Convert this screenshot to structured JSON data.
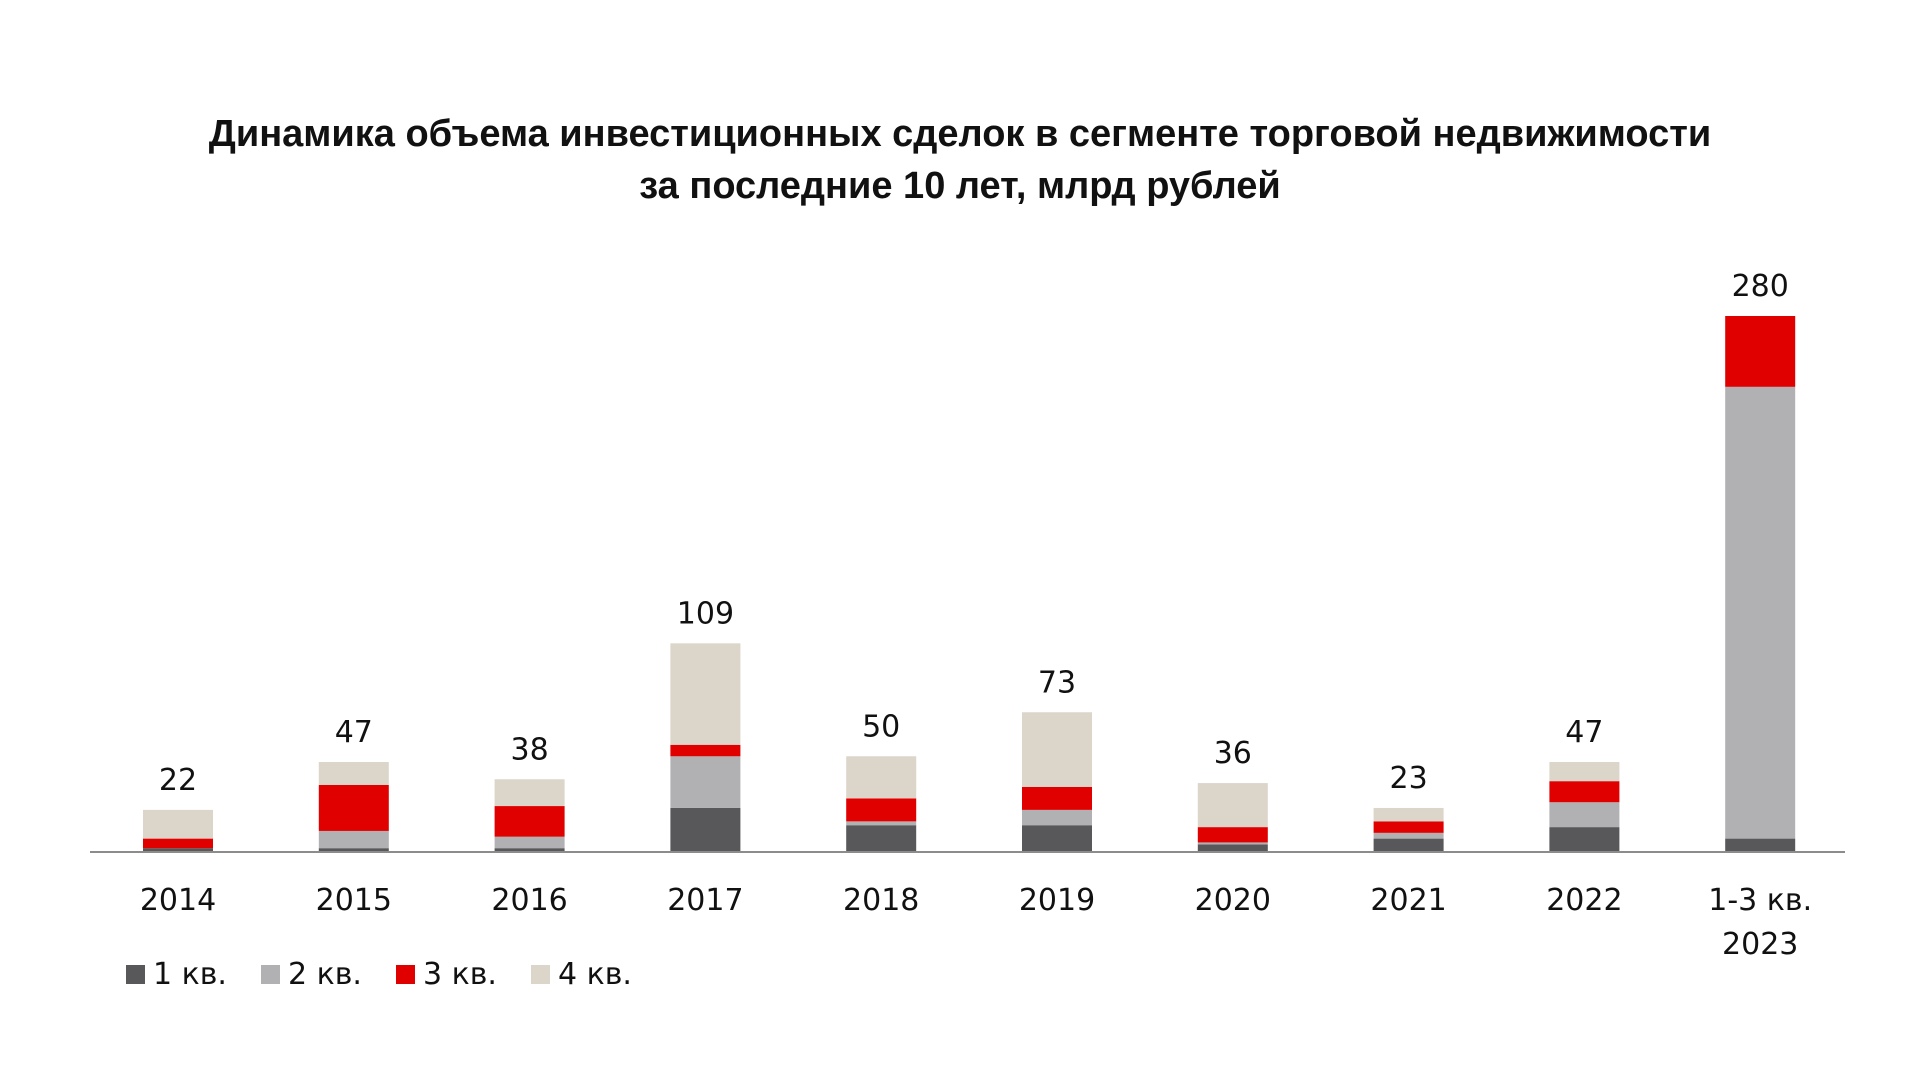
{
  "chart_data": {
    "type": "bar",
    "stacked": true,
    "title_lines": [
      "Динамика объема инвестиционных сделок в сегменте торговой недвижимости",
      "за последние 10 лет, млрд рублей"
    ],
    "categories": [
      [
        "2014"
      ],
      [
        "2015"
      ],
      [
        "2016"
      ],
      [
        "2017"
      ],
      [
        "2018"
      ],
      [
        "2019"
      ],
      [
        "2020"
      ],
      [
        "2021"
      ],
      [
        "2022"
      ],
      [
        "1-3 кв.",
        "2023"
      ]
    ],
    "totals": [
      22,
      47,
      38,
      109,
      50,
      73,
      36,
      23,
      47,
      280
    ],
    "series": [
      {
        "name": "1 кв.",
        "color": "#58585a",
        "values": [
          2,
          2,
          2,
          23,
          14,
          14,
          4,
          7,
          13,
          7
        ]
      },
      {
        "name": "2 кв.",
        "color": "#b1b1b3",
        "values": [
          0,
          9,
          6,
          27,
          2,
          8,
          1,
          3,
          13,
          236
        ]
      },
      {
        "name": "3 кв.",
        "color": "#e00000",
        "values": [
          5,
          24,
          16,
          6,
          12,
          12,
          8,
          6,
          11,
          37
        ]
      },
      {
        "name": "4 кв.",
        "color": "#dcd5c9",
        "values": [
          15,
          12,
          14,
          53,
          22,
          39,
          23,
          7,
          10,
          0
        ]
      }
    ],
    "ylim": [
      0,
      280
    ],
    "grid": false,
    "legend_position": "bottom-left"
  }
}
